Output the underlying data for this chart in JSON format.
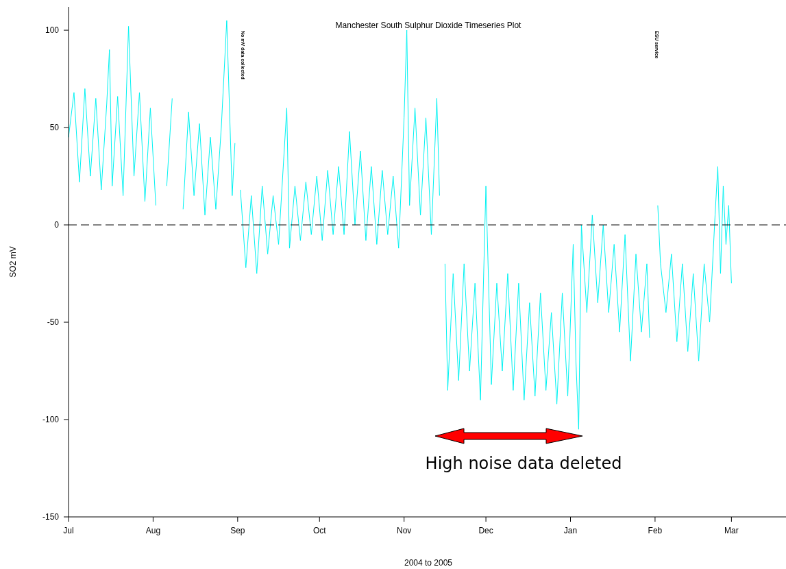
{
  "chart_data": {
    "type": "line",
    "title": "Manchester South Sulphur Dioxide Timeseries Plot",
    "xlabel": "2004 to 2005",
    "ylabel": "SO2 mV",
    "x": [
      "2004-07-01",
      "2004-07-03",
      "2004-07-05",
      "2004-07-07",
      "2004-07-09",
      "2004-07-11",
      "2004-07-13",
      "2004-07-15",
      "2004-07-16",
      "2004-07-17",
      "2004-07-19",
      "2004-07-21",
      "2004-07-23",
      "2004-07-25",
      "2004-07-27",
      "2004-07-29",
      "2004-07-31",
      "2004-08-02",
      "2004-08-04",
      "2004-08-06",
      "2004-08-08",
      "2004-08-10",
      "2004-08-12",
      "2004-08-14",
      "2004-08-16",
      "2004-08-18",
      "2004-08-20",
      "2004-08-22",
      "2004-08-24",
      "2004-08-26",
      "2004-08-28",
      "2004-08-30",
      "2004-08-31",
      "2004-09-01",
      "2004-09-02",
      "2004-09-04",
      "2004-09-06",
      "2004-09-08",
      "2004-09-10",
      "2004-09-12",
      "2004-09-14",
      "2004-09-16",
      "2004-09-19",
      "2004-09-20",
      "2004-09-22",
      "2004-09-24",
      "2004-09-26",
      "2004-09-28",
      "2004-09-30",
      "2004-10-02",
      "2004-10-04",
      "2004-10-06",
      "2004-10-08",
      "2004-10-10",
      "2004-10-12",
      "2004-10-14",
      "2004-10-16",
      "2004-10-18",
      "2004-10-20",
      "2004-10-22",
      "2004-10-24",
      "2004-10-26",
      "2004-10-28",
      "2004-10-30",
      "2004-11-01",
      "2004-11-02",
      "2004-11-03",
      "2004-11-05",
      "2004-11-07",
      "2004-11-09",
      "2004-11-11",
      "2004-11-13",
      "2004-11-14",
      "2004-11-15",
      "2004-11-16",
      "2004-11-17",
      "2004-11-19",
      "2004-11-21",
      "2004-11-23",
      "2004-11-25",
      "2004-11-27",
      "2004-11-29",
      "2004-12-01",
      "2004-12-03",
      "2004-12-05",
      "2004-12-07",
      "2004-12-09",
      "2004-12-11",
      "2004-12-13",
      "2004-12-15",
      "2004-12-17",
      "2004-12-19",
      "2004-12-21",
      "2004-12-23",
      "2004-12-25",
      "2004-12-27",
      "2004-12-29",
      "2004-12-31",
      "2005-01-02",
      "2005-01-03",
      "2005-01-04",
      "2005-01-05",
      "2005-01-07",
      "2005-01-09",
      "2005-01-11",
      "2005-01-13",
      "2005-01-15",
      "2005-01-17",
      "2005-01-19",
      "2005-01-21",
      "2005-01-23",
      "2005-01-25",
      "2005-01-27",
      "2005-01-29",
      "2005-01-30",
      "2005-01-31",
      "2005-02-02",
      "2005-02-03",
      "2005-02-05",
      "2005-02-07",
      "2005-02-09",
      "2005-02-11",
      "2005-02-13",
      "2005-02-15",
      "2005-02-17",
      "2005-02-19",
      "2005-02-21",
      "2005-02-23",
      "2005-02-24",
      "2005-02-25",
      "2005-02-26",
      "2005-02-27",
      "2005-02-28",
      "2005-03-01"
    ],
    "series": [
      {
        "color": "#00f2f2",
        "values": [
          45,
          68,
          22,
          70,
          25,
          65,
          18,
          62,
          90,
          20,
          66,
          15,
          102,
          25,
          68,
          12,
          60,
          10,
          null,
          20,
          65,
          null,
          8,
          58,
          15,
          52,
          5,
          45,
          8,
          50,
          105,
          15,
          42,
          null,
          18,
          -22,
          15,
          -25,
          20,
          -15,
          15,
          -10,
          60,
          -12,
          20,
          -8,
          22,
          -5,
          25,
          -8,
          28,
          -5,
          30,
          -5,
          48,
          0,
          38,
          -8,
          30,
          -10,
          28,
          -5,
          25,
          -12,
          55,
          100,
          10,
          60,
          5,
          55,
          -5,
          65,
          15,
          null,
          -20,
          -85,
          -25,
          -80,
          -20,
          -75,
          -30,
          -90,
          20,
          -82,
          -30,
          -75,
          -25,
          -85,
          -30,
          -90,
          -40,
          -88,
          -35,
          -85,
          -45,
          -92,
          -35,
          -88,
          -10,
          -70,
          -105,
          0,
          -45,
          5,
          -40,
          0,
          -45,
          -10,
          -55,
          -5,
          -70,
          -15,
          -55,
          -20,
          -58,
          null,
          10,
          -20,
          -45,
          -15,
          -60,
          -20,
          -65,
          -25,
          -70,
          -20,
          -50,
          5,
          30,
          -25,
          20,
          -10,
          10,
          -30
        ]
      }
    ],
    "xlim": [
      "2004-07-01",
      "2005-03-21"
    ],
    "xticks": [
      {
        "value": "2004-07-01",
        "label": "Jul"
      },
      {
        "value": "2004-08-01",
        "label": "Aug"
      },
      {
        "value": "2004-09-01",
        "label": "Sep"
      },
      {
        "value": "2004-10-01",
        "label": "Oct"
      },
      {
        "value": "2004-11-01",
        "label": "Nov"
      },
      {
        "value": "2004-12-01",
        "label": "Dec"
      },
      {
        "value": "2005-01-01",
        "label": "Jan"
      },
      {
        "value": "2005-02-01",
        "label": "Feb"
      },
      {
        "value": "2005-03-01",
        "label": "Mar"
      }
    ],
    "ylim": [
      -150,
      112
    ],
    "yticks": [
      -150,
      -100,
      -50,
      0,
      50,
      100
    ],
    "ref_lines": [
      {
        "axis": "y",
        "value": 0,
        "label": null,
        "color": "#000000",
        "line_style": "dashed"
      }
    ],
    "annotations": [
      "No mV data collected",
      "ESU service",
      "High noise data deleted"
    ],
    "grid": false,
    "marker": "none",
    "line_style": "solid"
  }
}
